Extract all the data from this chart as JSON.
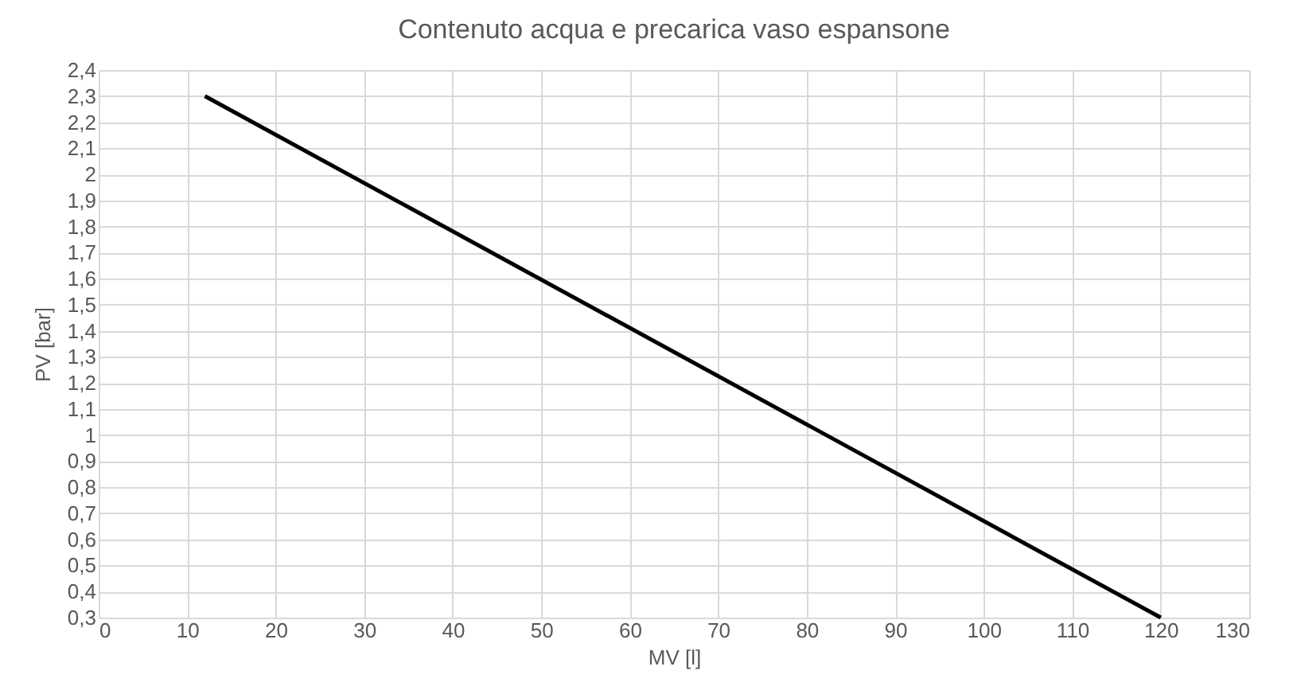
{
  "chart_data": {
    "type": "line",
    "title": "Contenuto acqua e precarica vaso espansone",
    "xlabel": "MV [l]",
    "ylabel": "PV [bar]",
    "x": [
      12,
      120
    ],
    "series": [
      {
        "color": "#000000",
        "values": [
          2.3,
          0.3
        ]
      }
    ],
    "xlim": [
      0,
      130
    ],
    "xticks": [
      0,
      10,
      20,
      30,
      40,
      50,
      60,
      70,
      80,
      90,
      100,
      110,
      120,
      130
    ],
    "ylim": [
      0.3,
      2.4
    ],
    "yticks": [
      {
        "value": 0.3,
        "label": "0,3"
      },
      {
        "value": 0.4,
        "label": "0,4"
      },
      {
        "value": 0.5,
        "label": "0,5"
      },
      {
        "value": 0.6,
        "label": "0,6"
      },
      {
        "value": 0.7,
        "label": "0,7"
      },
      {
        "value": 0.8,
        "label": "0,8"
      },
      {
        "value": 0.9,
        "label": "0,9"
      },
      1,
      {
        "value": 1.1,
        "label": "1,1"
      },
      {
        "value": 1.2,
        "label": "1,2"
      },
      {
        "value": 1.3,
        "label": "1,3"
      },
      {
        "value": 1.4,
        "label": "1,4"
      },
      {
        "value": 1.5,
        "label": "1,5"
      },
      {
        "value": 1.6,
        "label": "1,6"
      },
      {
        "value": 1.7,
        "label": "1,7"
      },
      {
        "value": 1.8,
        "label": "1,8"
      },
      {
        "value": 1.9,
        "label": "1,9"
      },
      2,
      {
        "value": 2.1,
        "label": "2,1"
      },
      {
        "value": 2.2,
        "label": "2,2"
      },
      {
        "value": 2.3,
        "label": "2,3"
      },
      {
        "value": 2.4,
        "label": "2,4"
      }
    ],
    "grid": true,
    "marker": "none",
    "line_style": "solid"
  }
}
